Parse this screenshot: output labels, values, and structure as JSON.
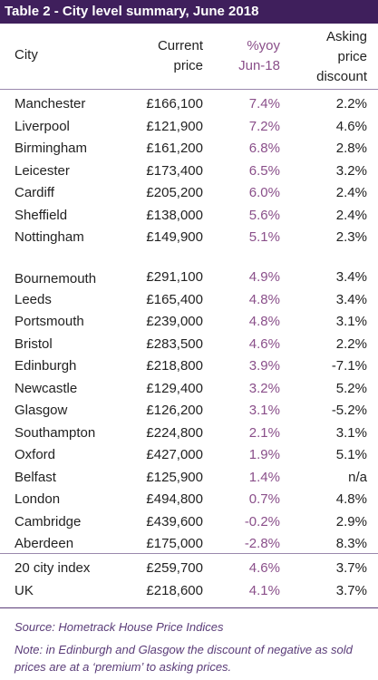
{
  "title": "Table 2 - City level summary, June 2018",
  "headers": {
    "city": "City",
    "price": "Current price",
    "yoy": "%yoy Jun-18",
    "discount": "Asking price discount"
  },
  "rows": [
    {
      "city": "Manchester",
      "price": "£166,100",
      "yoy": "7.4%",
      "discount": "2.2%"
    },
    {
      "city": "Liverpool",
      "price": "£121,900",
      "yoy": "7.2%",
      "discount": "4.6%"
    },
    {
      "city": "Birmingham",
      "price": "£161,200",
      "yoy": "6.8%",
      "discount": "2.8%"
    },
    {
      "city": "Leicester",
      "price": "£173,400",
      "yoy": "6.5%",
      "discount": "3.2%"
    },
    {
      "city": "Cardiff",
      "price": "£205,200",
      "yoy": "6.0%",
      "discount": "2.4%"
    },
    {
      "city": "Sheffield",
      "price": "£138,000",
      "yoy": "5.6%",
      "discount": "2.4%"
    },
    {
      "city": "Nottingham",
      "price": "£149,900",
      "yoy": "5.1%",
      "discount": "2.3%"
    },
    {
      "city": "Bournemouth",
      "price": "£291,100",
      "yoy": "4.9%",
      "discount": "3.4%"
    },
    {
      "city": "Leeds",
      "price": "£165,400",
      "yoy": "4.8%",
      "discount": "3.4%"
    },
    {
      "city": "Portsmouth",
      "price": "£239,000",
      "yoy": "4.8%",
      "discount": "3.1%"
    },
    {
      "city": "Bristol",
      "price": "£283,500",
      "yoy": "4.6%",
      "discount": "2.2%"
    },
    {
      "city": "Edinburgh",
      "price": "£218,800",
      "yoy": "3.9%",
      "discount": "-7.1%"
    },
    {
      "city": "Newcastle",
      "price": "£129,400",
      "yoy": "3.2%",
      "discount": "5.2%"
    },
    {
      "city": "Glasgow",
      "price": "£126,200",
      "yoy": "3.1%",
      "discount": "-5.2%"
    },
    {
      "city": "Southampton",
      "price": "£224,800",
      "yoy": "2.1%",
      "discount": "3.1%"
    },
    {
      "city": "Oxford",
      "price": "£427,000",
      "yoy": "1.9%",
      "discount": "5.1%"
    },
    {
      "city": "Belfast",
      "price": "£125,900",
      "yoy": "1.4%",
      "discount": "n/a"
    },
    {
      "city": "London",
      "price": "£494,800",
      "yoy": "0.7%",
      "discount": "4.8%"
    },
    {
      "city": "Cambridge",
      "price": "£439,600",
      "yoy": "-0.2%",
      "discount": "2.9%"
    },
    {
      "city": "Aberdeen",
      "price": "£175,000",
      "yoy": "-2.8%",
      "discount": "8.3%"
    }
  ],
  "totals": [
    {
      "city": "20 city index",
      "price": "£259,700",
      "yoy": "4.6%",
      "discount": "3.7%"
    },
    {
      "city": "UK",
      "price": "£218,600",
      "yoy": "4.1%",
      "discount": "3.7%"
    }
  ],
  "source": "Source: Hometrack House Price Indices",
  "note": "Note: in Edinburgh and Glasgow the discount of negative as sold prices are at a ‘premium’ to asking prices."
}
